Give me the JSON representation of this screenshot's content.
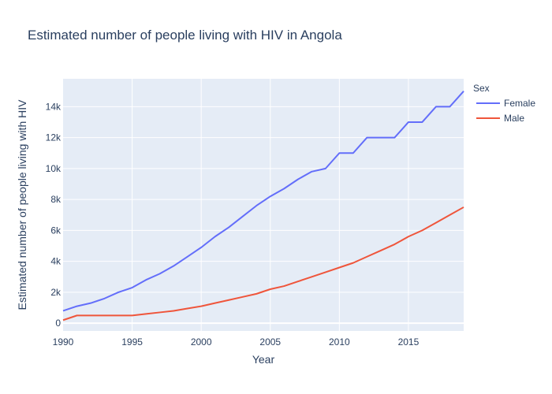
{
  "chart_data": {
    "type": "line",
    "title": "Estimated number of people living with HIV in Angola",
    "xlabel": "Year",
    "ylabel": "Estimated number of people living with HIV",
    "xlim": [
      1990,
      2019
    ],
    "ylim": [
      -500,
      15800
    ],
    "x_ticks": [
      1990,
      1995,
      2000,
      2005,
      2010,
      2015
    ],
    "x_tick_labels": [
      "1990",
      "1995",
      "2000",
      "2005",
      "2010",
      "2015"
    ],
    "y_ticks": [
      0,
      2000,
      4000,
      6000,
      8000,
      10000,
      12000,
      14000
    ],
    "y_tick_labels": [
      "0",
      "2k",
      "4k",
      "6k",
      "8k",
      "10k",
      "12k",
      "14k"
    ],
    "grid": true,
    "legend_title": "Sex",
    "legend_position": "top-right",
    "x": [
      1990,
      1991,
      1992,
      1993,
      1994,
      1995,
      1996,
      1997,
      1998,
      1999,
      2000,
      2001,
      2002,
      2003,
      2004,
      2005,
      2006,
      2007,
      2008,
      2009,
      2010,
      2011,
      2012,
      2013,
      2014,
      2015,
      2016,
      2017,
      2018,
      2019
    ],
    "series": [
      {
        "name": "Female",
        "color": "#636efa",
        "values": [
          800,
          1100,
          1300,
          1600,
          2000,
          2300,
          2800,
          3200,
          3700,
          4300,
          4900,
          5600,
          6200,
          6900,
          7600,
          8200,
          8700,
          9300,
          9800,
          10000,
          11000,
          11000,
          12000,
          12000,
          12000,
          13000,
          13000,
          14000,
          14000,
          15000
        ]
      },
      {
        "name": "Male",
        "color": "#ef553b",
        "values": [
          200,
          500,
          500,
          500,
          500,
          500,
          600,
          700,
          800,
          950,
          1100,
          1300,
          1500,
          1700,
          1900,
          2200,
          2400,
          2700,
          3000,
          3300,
          3600,
          3900,
          4300,
          4700,
          5100,
          5600,
          6000,
          6500,
          7000,
          7500
        ]
      }
    ]
  },
  "colors": {
    "plot_background": "#e5ecf6",
    "gridline": "#ffffff",
    "text": "#2a3f5f"
  }
}
